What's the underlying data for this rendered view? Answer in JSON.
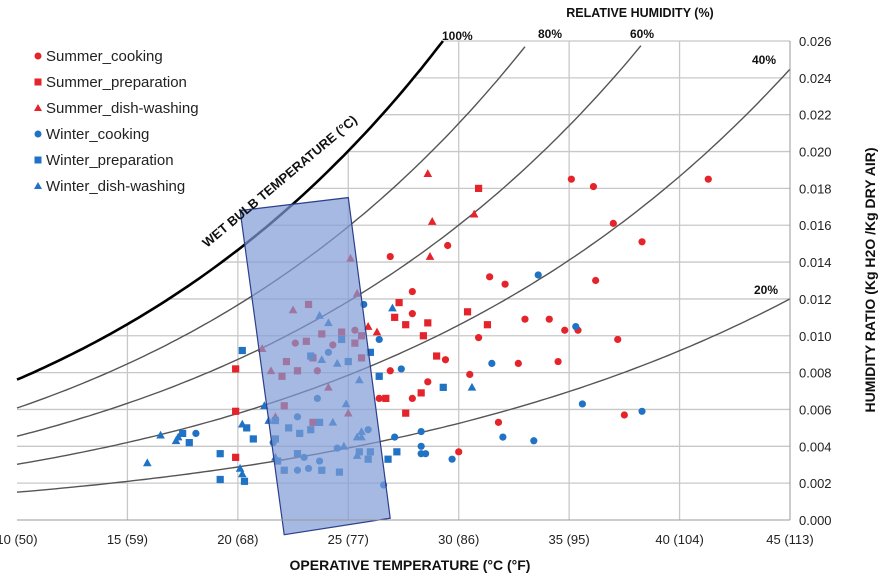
{
  "chart_data": {
    "type": "scatter",
    "title": "RELATIVE HUMIDITY (%)",
    "xlabel": "OPERATIVE TEMPERATURE (°C (°F)",
    "ylabel": "HUMIDITY RATIO (Kg H2O /Kg DRY AIR)",
    "wet_bulb_label": "WET BULB TEMPERATURE (°C)",
    "xlim": [
      10,
      45
    ],
    "ylim": [
      0,
      0.026
    ],
    "grid": true,
    "legend_position": "top-left",
    "x_ticks": [
      {
        "value": 10,
        "label": "10 (50)"
      },
      {
        "value": 15,
        "label": "15 (59)"
      },
      {
        "value": 20,
        "label": "20 (68)"
      },
      {
        "value": 25,
        "label": "25 (77)"
      },
      {
        "value": 30,
        "label": "30 (86)"
      },
      {
        "value": 35,
        "label": "35 (95)"
      },
      {
        "value": 40,
        "label": "40 (104)"
      },
      {
        "value": 45,
        "label": "45 (113)"
      }
    ],
    "y_ticks": [
      "0.000",
      "0.002",
      "0.004",
      "0.006",
      "0.008",
      "0.010",
      "0.012",
      "0.014",
      "0.016",
      "0.018",
      "0.020",
      "0.022",
      "0.024",
      "0.026"
    ],
    "rh_curves": [
      {
        "rh": 100,
        "label": "100%"
      },
      {
        "rh": 80,
        "label": "80%"
      },
      {
        "rh": 60,
        "label": "60%"
      },
      {
        "rh": 40,
        "label": "40%"
      },
      {
        "rh": 20,
        "label": "20%"
      }
    ],
    "comfort_zone": {
      "fill": "#7f9bd6",
      "stroke": "#2b3f8c",
      "points": [
        [
          20.1,
          0.0168
        ],
        [
          25.0,
          0.0175
        ],
        [
          26.9,
          0.0001
        ],
        [
          22.1,
          -0.0008
        ]
      ]
    },
    "colors": {
      "summer": "#e5232a",
      "winter": "#1f72c4",
      "curve": "#555555",
      "saturation": "#000000",
      "grid": "#c8c8c8"
    },
    "series": [
      {
        "name": "Summer_cooking",
        "marker": "circle",
        "color": "#e5232a",
        "points": [
          [
            35.1,
            0.0185
          ],
          [
            36.1,
            0.0181
          ],
          [
            41.3,
            0.0185
          ],
          [
            37.0,
            0.0161
          ],
          [
            38.3,
            0.0151
          ],
          [
            29.5,
            0.0149
          ],
          [
            26.9,
            0.0143
          ],
          [
            31.4,
            0.0132
          ],
          [
            32.1,
            0.0128
          ],
          [
            36.2,
            0.013
          ],
          [
            27.9,
            0.0124
          ],
          [
            27.9,
            0.0112
          ],
          [
            33.0,
            0.0109
          ],
          [
            34.1,
            0.0109
          ],
          [
            34.8,
            0.0103
          ],
          [
            35.4,
            0.0103
          ],
          [
            37.2,
            0.0098
          ],
          [
            30.9,
            0.0099
          ],
          [
            29.4,
            0.0087
          ],
          [
            26.9,
            0.0081
          ],
          [
            32.7,
            0.0085
          ],
          [
            34.5,
            0.0086
          ],
          [
            28.6,
            0.0075
          ],
          [
            30.5,
            0.0079
          ],
          [
            27.9,
            0.0066
          ],
          [
            37.5,
            0.0057
          ],
          [
            31.8,
            0.0053
          ],
          [
            30.0,
            0.0037
          ],
          [
            22.6,
            0.0096
          ],
          [
            24.3,
            0.0095
          ],
          [
            25.3,
            0.0103
          ],
          [
            23.6,
            0.0081
          ],
          [
            26.4,
            0.0066
          ]
        ]
      },
      {
        "name": "Summer_preparation",
        "marker": "square",
        "color": "#e5232a",
        "points": [
          [
            30.9,
            0.018
          ],
          [
            27.3,
            0.0118
          ],
          [
            27.1,
            0.011
          ],
          [
            27.6,
            0.0106
          ],
          [
            28.6,
            0.0107
          ],
          [
            28.4,
            0.01
          ],
          [
            30.4,
            0.0113
          ],
          [
            31.3,
            0.0106
          ],
          [
            29.0,
            0.0089
          ],
          [
            28.3,
            0.0069
          ],
          [
            26.7,
            0.0066
          ],
          [
            27.6,
            0.0058
          ],
          [
            19.9,
            0.0082
          ],
          [
            19.9,
            0.0059
          ],
          [
            19.9,
            0.0034
          ],
          [
            23.2,
            0.0117
          ],
          [
            23.8,
            0.0101
          ],
          [
            24.7,
            0.0102
          ],
          [
            23.1,
            0.0097
          ],
          [
            25.3,
            0.0096
          ],
          [
            25.6,
            0.01
          ],
          [
            22.2,
            0.0086
          ],
          [
            23.4,
            0.0088
          ],
          [
            22.7,
            0.0081
          ],
          [
            25.6,
            0.0088
          ],
          [
            22.0,
            0.0078
          ],
          [
            22.1,
            0.0062
          ],
          [
            23.4,
            0.0053
          ]
        ]
      },
      {
        "name": "Summer_dish-washing",
        "marker": "triangle",
        "color": "#e5232a",
        "points": [
          [
            28.6,
            0.0188
          ],
          [
            28.8,
            0.0162
          ],
          [
            30.7,
            0.0166
          ],
          [
            28.7,
            0.0143
          ],
          [
            25.1,
            0.0142
          ],
          [
            25.4,
            0.0123
          ],
          [
            22.5,
            0.0114
          ],
          [
            25.9,
            0.0105
          ],
          [
            26.3,
            0.0102
          ],
          [
            21.1,
            0.0093
          ],
          [
            21.5,
            0.0081
          ],
          [
            24.1,
            0.0072
          ],
          [
            25.0,
            0.0058
          ],
          [
            21.7,
            0.0056
          ]
        ]
      },
      {
        "name": "Winter_cooking",
        "marker": "circle",
        "color": "#1f72c4",
        "points": [
          [
            33.6,
            0.0133
          ],
          [
            35.3,
            0.0105
          ],
          [
            27.4,
            0.0082
          ],
          [
            31.5,
            0.0085
          ],
          [
            35.6,
            0.0063
          ],
          [
            38.3,
            0.0059
          ],
          [
            27.1,
            0.0045
          ],
          [
            28.3,
            0.0048
          ],
          [
            28.3,
            0.004
          ],
          [
            28.3,
            0.0036
          ],
          [
            28.5,
            0.0036
          ],
          [
            32.0,
            0.0045
          ],
          [
            33.4,
            0.0043
          ],
          [
            29.7,
            0.0033
          ],
          [
            25.7,
            0.0117
          ],
          [
            26.4,
            0.0098
          ],
          [
            24.1,
            0.0091
          ],
          [
            23.6,
            0.0066
          ],
          [
            22.7,
            0.0056
          ],
          [
            25.9,
            0.0049
          ],
          [
            18.1,
            0.0047
          ],
          [
            21.6,
            0.0042
          ],
          [
            24.5,
            0.0039
          ],
          [
            23.0,
            0.0034
          ],
          [
            23.7,
            0.0032
          ],
          [
            22.7,
            0.0027
          ],
          [
            23.2,
            0.0028
          ],
          [
            26.6,
            0.0019
          ]
        ]
      },
      {
        "name": "Winter_preparation",
        "marker": "square",
        "color": "#1f72c4",
        "points": [
          [
            20.2,
            0.0092
          ],
          [
            23.3,
            0.0089
          ],
          [
            24.7,
            0.0098
          ],
          [
            25.0,
            0.0086
          ],
          [
            26.0,
            0.0091
          ],
          [
            26.4,
            0.0078
          ],
          [
            29.3,
            0.0072
          ],
          [
            21.7,
            0.0054
          ],
          [
            22.3,
            0.005
          ],
          [
            22.8,
            0.0047
          ],
          [
            23.3,
            0.0049
          ],
          [
            23.7,
            0.0053
          ],
          [
            20.4,
            0.005
          ],
          [
            20.7,
            0.0044
          ],
          [
            17.8,
            0.0042
          ],
          [
            17.5,
            0.0047
          ],
          [
            19.2,
            0.0036
          ],
          [
            21.7,
            0.0044
          ],
          [
            22.7,
            0.0036
          ],
          [
            21.8,
            0.0032
          ],
          [
            22.1,
            0.0027
          ],
          [
            23.8,
            0.0027
          ],
          [
            24.6,
            0.0026
          ],
          [
            25.5,
            0.0037
          ],
          [
            26.0,
            0.0037
          ],
          [
            25.9,
            0.0033
          ],
          [
            26.8,
            0.0033
          ],
          [
            27.2,
            0.0037
          ],
          [
            19.2,
            0.0022
          ],
          [
            20.3,
            0.0021
          ]
        ]
      },
      {
        "name": "Winter_dish-washing",
        "marker": "triangle",
        "color": "#1f72c4",
        "points": [
          [
            23.7,
            0.0111
          ],
          [
            24.1,
            0.0107
          ],
          [
            23.8,
            0.0087
          ],
          [
            24.5,
            0.0085
          ],
          [
            25.5,
            0.0076
          ],
          [
            27.0,
            0.0115
          ],
          [
            30.6,
            0.0072
          ],
          [
            21.2,
            0.0062
          ],
          [
            24.9,
            0.0063
          ],
          [
            20.2,
            0.0052
          ],
          [
            21.4,
            0.0054
          ],
          [
            24.3,
            0.0053
          ],
          [
            21.7,
            0.0034
          ],
          [
            24.8,
            0.004
          ],
          [
            25.4,
            0.0045
          ],
          [
            25.6,
            0.0045
          ],
          [
            25.6,
            0.0048
          ],
          [
            25.4,
            0.0035
          ],
          [
            20.1,
            0.0028
          ],
          [
            20.2,
            0.0025
          ],
          [
            17.2,
            0.0043
          ],
          [
            17.3,
            0.0045
          ],
          [
            16.5,
            0.0046
          ],
          [
            15.9,
            0.0031
          ]
        ]
      }
    ]
  }
}
